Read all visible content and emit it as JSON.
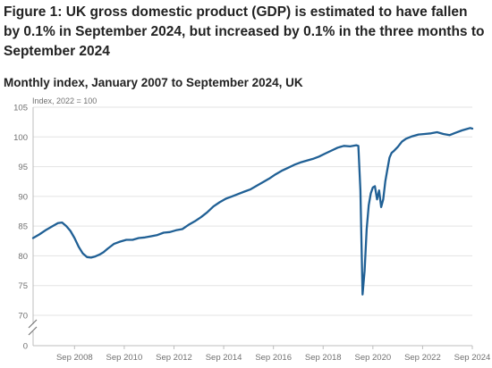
{
  "figure": {
    "title": "Figure 1: UK gross domestic product (GDP) is estimated to have fallen by 0.1% in September 2024, but increased by 0.1% in the three months to September 2024",
    "subtitle": "Monthly index, January 2007 to September 2024, UK"
  },
  "chart_data": {
    "type": "line",
    "ylabel": "Index, 2022 = 100",
    "ylim": [
      0,
      105
    ],
    "y_axis_break": [
      0,
      70
    ],
    "y_ticks": [
      0,
      70,
      75,
      80,
      85,
      90,
      95,
      100,
      105
    ],
    "x_tick_labels": [
      "Sep 2008",
      "Sep 2010",
      "Sep 2012",
      "Sep 2014",
      "Sep 2016",
      "Sep 2018",
      "Sep 2020",
      "Sep 2022",
      "Sep 2024"
    ],
    "x_range": [
      "2007-01",
      "2024-09"
    ],
    "grid": true,
    "line_color": "#206095",
    "series": [
      {
        "name": "",
        "points": [
          [
            "2007-01",
            83.0
          ],
          [
            "2007-04",
            83.6
          ],
          [
            "2007-07",
            84.3
          ],
          [
            "2007-10",
            84.9
          ],
          [
            "2008-01",
            85.5
          ],
          [
            "2008-03",
            85.6
          ],
          [
            "2008-05",
            85.0
          ],
          [
            "2008-07",
            84.2
          ],
          [
            "2008-09",
            83.0
          ],
          [
            "2008-11",
            81.5
          ],
          [
            "2009-01",
            80.4
          ],
          [
            "2009-03",
            79.8
          ],
          [
            "2009-05",
            79.7
          ],
          [
            "2009-07",
            79.9
          ],
          [
            "2009-09",
            80.2
          ],
          [
            "2009-11",
            80.6
          ],
          [
            "2010-01",
            81.2
          ],
          [
            "2010-04",
            82.0
          ],
          [
            "2010-07",
            82.4
          ],
          [
            "2010-10",
            82.7
          ],
          [
            "2011-01",
            82.7
          ],
          [
            "2011-04",
            83.0
          ],
          [
            "2011-07",
            83.1
          ],
          [
            "2011-10",
            83.3
          ],
          [
            "2012-01",
            83.5
          ],
          [
            "2012-04",
            83.9
          ],
          [
            "2012-07",
            84.0
          ],
          [
            "2012-10",
            84.3
          ],
          [
            "2013-01",
            84.5
          ],
          [
            "2013-04",
            85.2
          ],
          [
            "2013-07",
            85.8
          ],
          [
            "2013-10",
            86.5
          ],
          [
            "2014-01",
            87.3
          ],
          [
            "2014-04",
            88.3
          ],
          [
            "2014-07",
            89.0
          ],
          [
            "2014-10",
            89.6
          ],
          [
            "2015-01",
            90.0
          ],
          [
            "2015-04",
            90.4
          ],
          [
            "2015-07",
            90.8
          ],
          [
            "2015-10",
            91.2
          ],
          [
            "2016-01",
            91.8
          ],
          [
            "2016-04",
            92.4
          ],
          [
            "2016-07",
            93.0
          ],
          [
            "2016-10",
            93.7
          ],
          [
            "2017-01",
            94.3
          ],
          [
            "2017-04",
            94.8
          ],
          [
            "2017-07",
            95.3
          ],
          [
            "2017-10",
            95.7
          ],
          [
            "2018-01",
            96.0
          ],
          [
            "2018-04",
            96.3
          ],
          [
            "2018-07",
            96.7
          ],
          [
            "2018-10",
            97.2
          ],
          [
            "2019-01",
            97.7
          ],
          [
            "2019-04",
            98.2
          ],
          [
            "2019-07",
            98.5
          ],
          [
            "2019-10",
            98.4
          ],
          [
            "2020-01",
            98.6
          ],
          [
            "2020-02",
            98.5
          ],
          [
            "2020-03",
            91.0
          ],
          [
            "2020-04",
            73.5
          ],
          [
            "2020-05",
            77.5
          ],
          [
            "2020-06",
            84.5
          ],
          [
            "2020-07",
            88.5
          ],
          [
            "2020-08",
            90.5
          ],
          [
            "2020-09",
            91.5
          ],
          [
            "2020-10",
            91.7
          ],
          [
            "2020-11",
            89.5
          ],
          [
            "2020-12",
            91.0
          ],
          [
            "2021-01",
            88.2
          ],
          [
            "2021-02",
            89.5
          ],
          [
            "2021-03",
            92.5
          ],
          [
            "2021-04",
            94.5
          ],
          [
            "2021-05",
            96.5
          ],
          [
            "2021-06",
            97.3
          ],
          [
            "2021-07",
            97.6
          ],
          [
            "2021-09",
            98.3
          ],
          [
            "2021-11",
            99.2
          ],
          [
            "2022-01",
            99.7
          ],
          [
            "2022-04",
            100.1
          ],
          [
            "2022-07",
            100.4
          ],
          [
            "2022-10",
            100.5
          ],
          [
            "2023-01",
            100.6
          ],
          [
            "2023-04",
            100.8
          ],
          [
            "2023-07",
            100.5
          ],
          [
            "2023-10",
            100.3
          ],
          [
            "2024-01",
            100.7
          ],
          [
            "2024-04",
            101.1
          ],
          [
            "2024-06",
            101.3
          ],
          [
            "2024-08",
            101.5
          ],
          [
            "2024-09",
            101.4
          ]
        ]
      }
    ]
  }
}
